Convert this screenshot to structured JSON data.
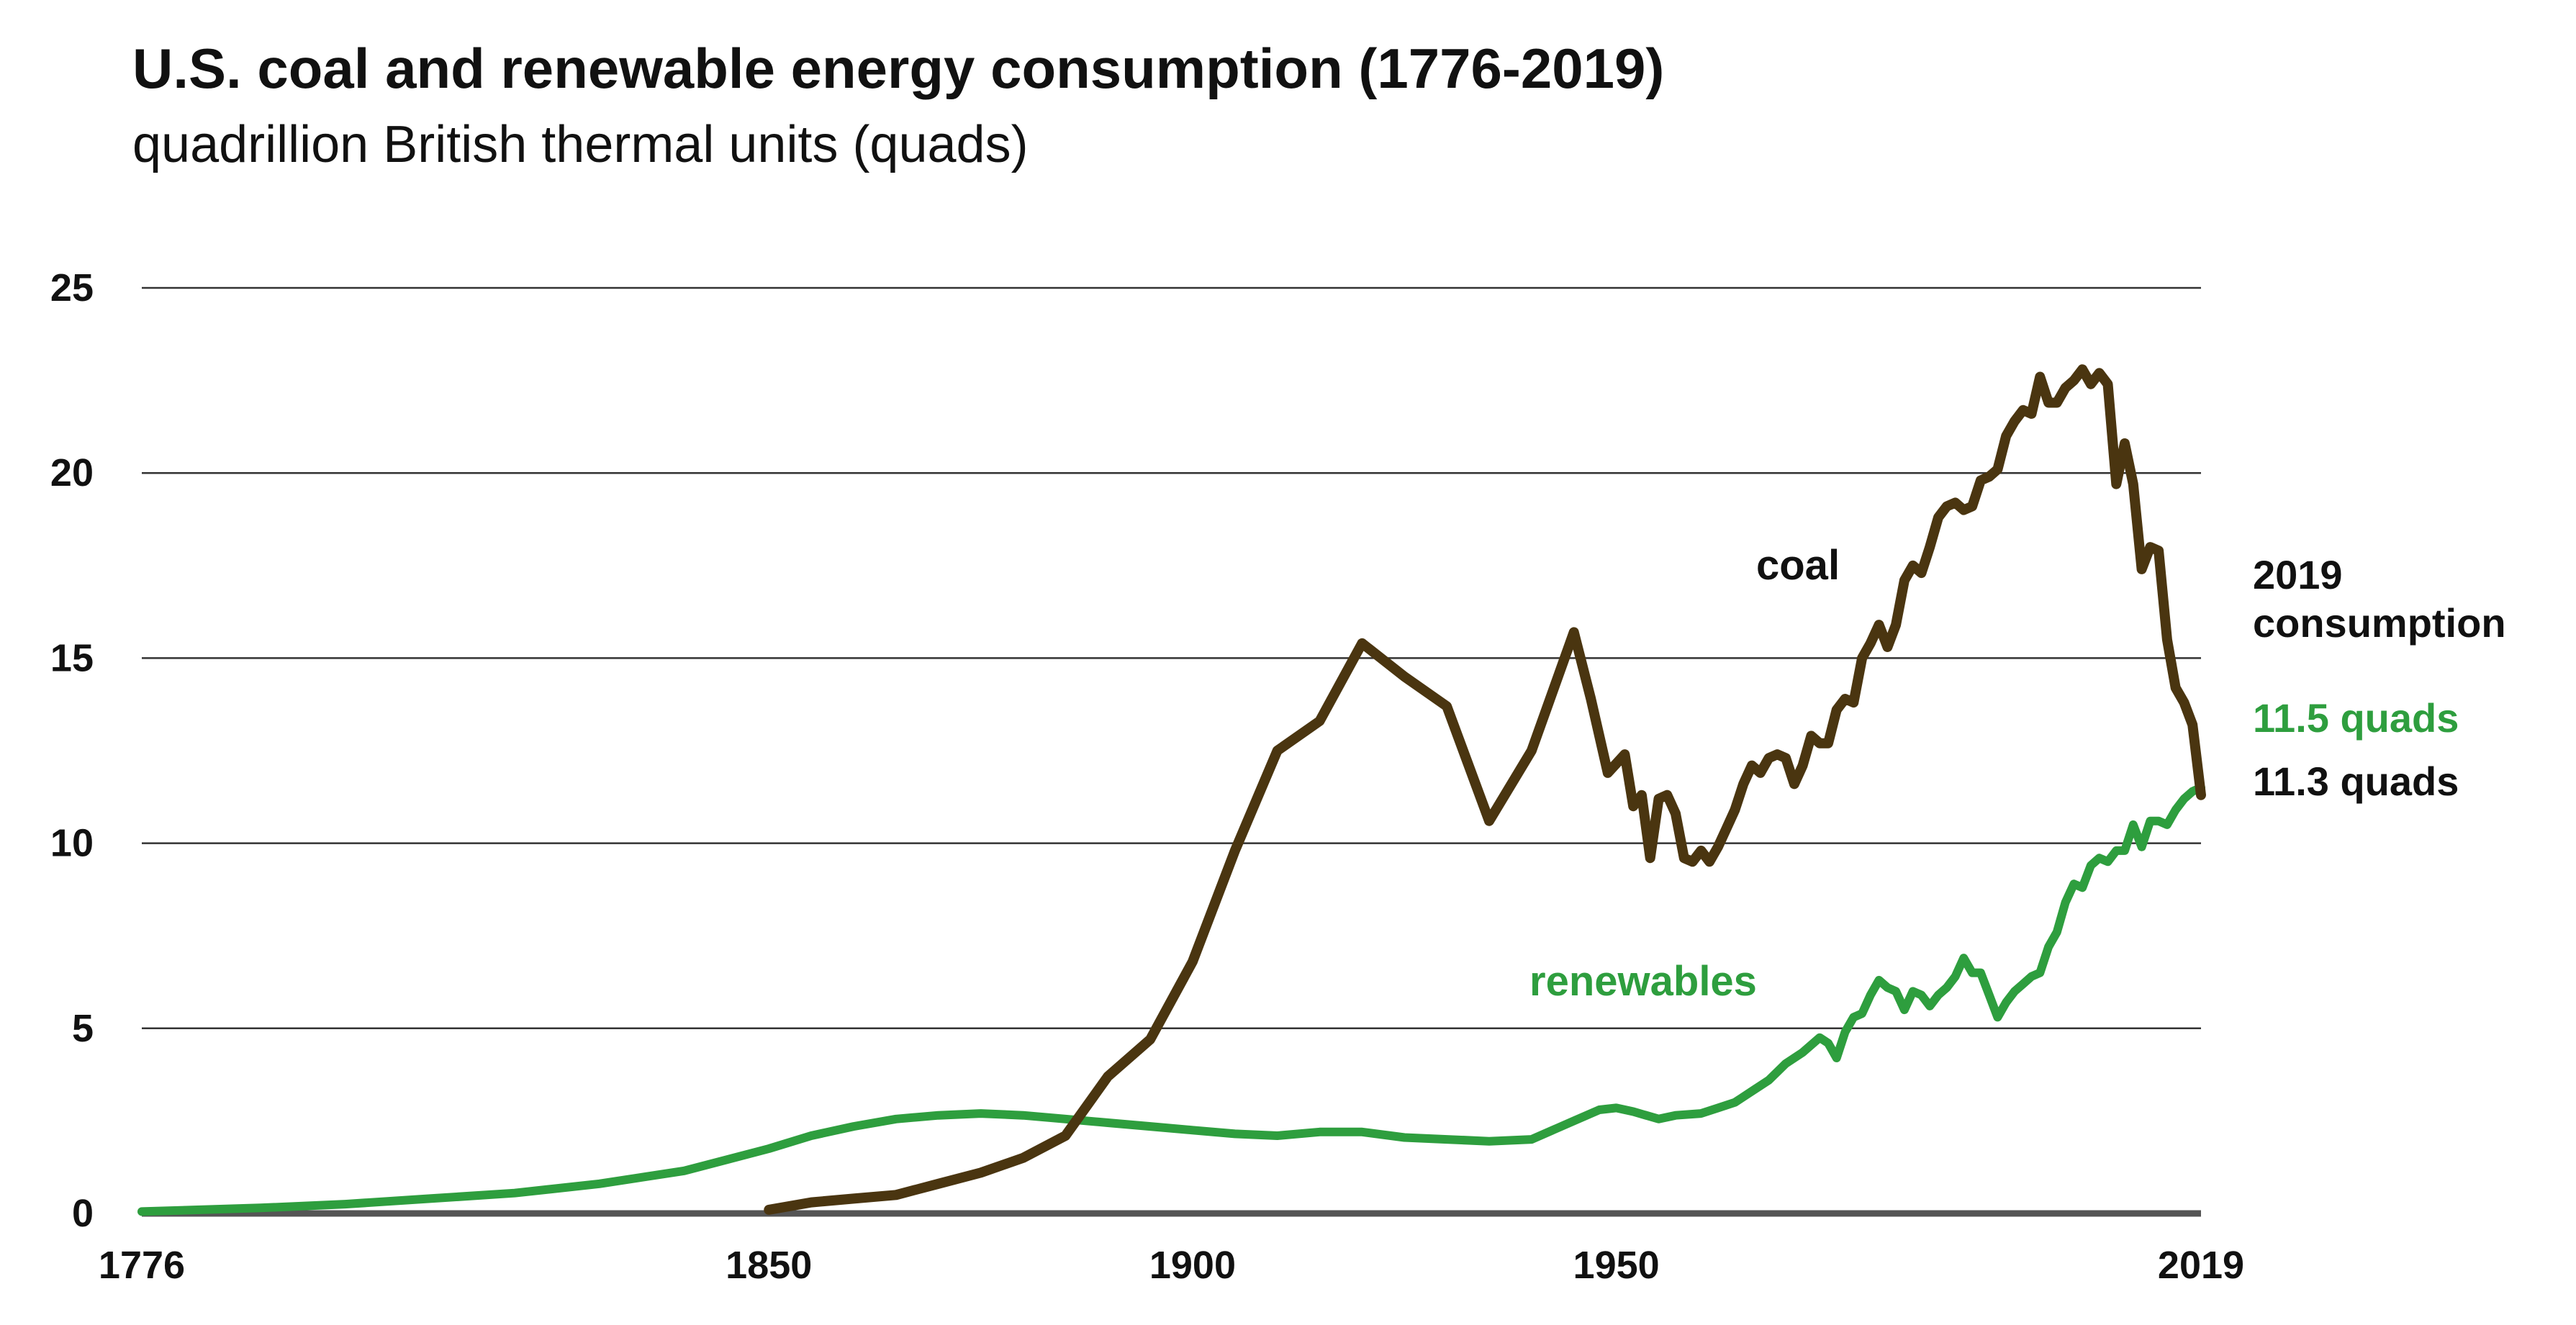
{
  "header": {
    "title": "U.S. coal and renewable energy consumption (1776-2019)",
    "subtitle": "quadrillion British thermal units (quads)"
  },
  "colors": {
    "coal": "#4a3510",
    "renewables": "#2e9e3e",
    "grid": "#333333",
    "axis": "#555555",
    "text": "#111111"
  },
  "annotations": {
    "coal_label": "coal",
    "renewables_label": "renewables",
    "consumption_line1": "2019",
    "consumption_line2": "consumption",
    "renewables_2019": "11.5 quads",
    "coal_2019": "11.3 quads"
  },
  "chart_data": {
    "type": "line",
    "title": "U.S. coal and renewable energy consumption (1776-2019)",
    "subtitle": "quadrillion British thermal units (quads)",
    "xlabel": "",
    "ylabel": "quadrillion British thermal units (quads)",
    "xlim": [
      1776,
      2019
    ],
    "ylim": [
      0,
      25
    ],
    "x_ticks": [
      1776,
      1850,
      1900,
      1950,
      2019
    ],
    "y_ticks": [
      0,
      5,
      10,
      15,
      20,
      25
    ],
    "grid": true,
    "series": [
      {
        "name": "coal",
        "points": [
          [
            1850,
            0.1
          ],
          [
            1855,
            0.3
          ],
          [
            1860,
            0.4
          ],
          [
            1865,
            0.5
          ],
          [
            1870,
            0.8
          ],
          [
            1875,
            1.1
          ],
          [
            1880,
            1.5
          ],
          [
            1885,
            2.1
          ],
          [
            1890,
            3.7
          ],
          [
            1895,
            4.7
          ],
          [
            1900,
            6.8
          ],
          [
            1905,
            9.8
          ],
          [
            1910,
            12.5
          ],
          [
            1915,
            13.3
          ],
          [
            1920,
            15.4
          ],
          [
            1925,
            14.5
          ],
          [
            1930,
            13.7
          ],
          [
            1935,
            10.6
          ],
          [
            1940,
            12.5
          ],
          [
            1945,
            15.7
          ],
          [
            1947,
            13.9
          ],
          [
            1949,
            11.9
          ],
          [
            1951,
            12.4
          ],
          [
            1952,
            11.0
          ],
          [
            1953,
            11.3
          ],
          [
            1954,
            9.6
          ],
          [
            1955,
            11.2
          ],
          [
            1956,
            11.3
          ],
          [
            1957,
            10.8
          ],
          [
            1958,
            9.6
          ],
          [
            1959,
            9.5
          ],
          [
            1960,
            9.8
          ],
          [
            1961,
            9.5
          ],
          [
            1962,
            9.9
          ],
          [
            1963,
            10.4
          ],
          [
            1964,
            10.9
          ],
          [
            1965,
            11.6
          ],
          [
            1966,
            12.1
          ],
          [
            1967,
            11.9
          ],
          [
            1968,
            12.3
          ],
          [
            1969,
            12.4
          ],
          [
            1970,
            12.3
          ],
          [
            1971,
            11.6
          ],
          [
            1972,
            12.1
          ],
          [
            1973,
            12.9
          ],
          [
            1974,
            12.7
          ],
          [
            1975,
            12.7
          ],
          [
            1976,
            13.6
          ],
          [
            1977,
            13.9
          ],
          [
            1978,
            13.8
          ],
          [
            1979,
            15.0
          ],
          [
            1980,
            15.4
          ],
          [
            1981,
            15.9
          ],
          [
            1982,
            15.3
          ],
          [
            1983,
            15.9
          ],
          [
            1984,
            17.1
          ],
          [
            1985,
            17.5
          ],
          [
            1986,
            17.3
          ],
          [
            1987,
            18.0
          ],
          [
            1988,
            18.8
          ],
          [
            1989,
            19.1
          ],
          [
            1990,
            19.2
          ],
          [
            1991,
            19.0
          ],
          [
            1992,
            19.1
          ],
          [
            1993,
            19.8
          ],
          [
            1994,
            19.9
          ],
          [
            1995,
            20.1
          ],
          [
            1996,
            21.0
          ],
          [
            1997,
            21.4
          ],
          [
            1998,
            21.7
          ],
          [
            1999,
            21.6
          ],
          [
            2000,
            22.6
          ],
          [
            2001,
            21.9
          ],
          [
            2002,
            21.9
          ],
          [
            2003,
            22.3
          ],
          [
            2004,
            22.5
          ],
          [
            2005,
            22.8
          ],
          [
            2006,
            22.4
          ],
          [
            2007,
            22.7
          ],
          [
            2008,
            22.4
          ],
          [
            2009,
            19.7
          ],
          [
            2010,
            20.8
          ],
          [
            2011,
            19.7
          ],
          [
            2012,
            17.4
          ],
          [
            2013,
            18.0
          ],
          [
            2014,
            17.9
          ],
          [
            2015,
            15.5
          ],
          [
            2016,
            14.2
          ],
          [
            2017,
            13.8
          ],
          [
            2018,
            13.2
          ],
          [
            2019,
            11.3
          ]
        ]
      },
      {
        "name": "renewables",
        "points": [
          [
            1776,
            0.05
          ],
          [
            1790,
            0.15
          ],
          [
            1800,
            0.25
          ],
          [
            1810,
            0.4
          ],
          [
            1820,
            0.55
          ],
          [
            1830,
            0.8
          ],
          [
            1840,
            1.15
          ],
          [
            1850,
            1.75
          ],
          [
            1855,
            2.1
          ],
          [
            1860,
            2.35
          ],
          [
            1865,
            2.55
          ],
          [
            1870,
            2.65
          ],
          [
            1875,
            2.7
          ],
          [
            1880,
            2.65
          ],
          [
            1885,
            2.55
          ],
          [
            1890,
            2.45
          ],
          [
            1895,
            2.35
          ],
          [
            1900,
            2.25
          ],
          [
            1905,
            2.15
          ],
          [
            1910,
            2.1
          ],
          [
            1915,
            2.2
          ],
          [
            1920,
            2.2
          ],
          [
            1925,
            2.05
          ],
          [
            1930,
            2.0
          ],
          [
            1935,
            1.95
          ],
          [
            1940,
            2.0
          ],
          [
            1945,
            2.5
          ],
          [
            1948,
            2.8
          ],
          [
            1950,
            2.85
          ],
          [
            1952,
            2.75
          ],
          [
            1955,
            2.55
          ],
          [
            1957,
            2.65
          ],
          [
            1960,
            2.7
          ],
          [
            1962,
            2.85
          ],
          [
            1964,
            3.0
          ],
          [
            1966,
            3.3
          ],
          [
            1968,
            3.6
          ],
          [
            1970,
            4.05
          ],
          [
            1972,
            4.35
          ],
          [
            1974,
            4.75
          ],
          [
            1975,
            4.6
          ],
          [
            1976,
            4.2
          ],
          [
            1977,
            4.9
          ],
          [
            1978,
            5.3
          ],
          [
            1979,
            5.4
          ],
          [
            1980,
            5.9
          ],
          [
            1981,
            6.3
          ],
          [
            1982,
            6.1
          ],
          [
            1983,
            6.0
          ],
          [
            1984,
            5.5
          ],
          [
            1985,
            6.0
          ],
          [
            1986,
            5.9
          ],
          [
            1987,
            5.6
          ],
          [
            1988,
            5.9
          ],
          [
            1989,
            6.1
          ],
          [
            1990,
            6.4
          ],
          [
            1991,
            6.9
          ],
          [
            1992,
            6.5
          ],
          [
            1993,
            6.5
          ],
          [
            1994,
            5.9
          ],
          [
            1995,
            5.3
          ],
          [
            1996,
            5.7
          ],
          [
            1997,
            6.0
          ],
          [
            1998,
            6.2
          ],
          [
            1999,
            6.4
          ],
          [
            2000,
            6.5
          ],
          [
            2001,
            7.2
          ],
          [
            2002,
            7.6
          ],
          [
            2003,
            8.4
          ],
          [
            2004,
            8.9
          ],
          [
            2005,
            8.8
          ],
          [
            2006,
            9.4
          ],
          [
            2007,
            9.6
          ],
          [
            2008,
            9.5
          ],
          [
            2009,
            9.8
          ],
          [
            2010,
            9.8
          ],
          [
            2011,
            10.5
          ],
          [
            2012,
            9.9
          ],
          [
            2013,
            10.6
          ],
          [
            2014,
            10.6
          ],
          [
            2015,
            10.5
          ],
          [
            2016,
            10.9
          ],
          [
            2017,
            11.2
          ],
          [
            2018,
            11.4
          ],
          [
            2019,
            11.5
          ]
        ]
      }
    ]
  }
}
